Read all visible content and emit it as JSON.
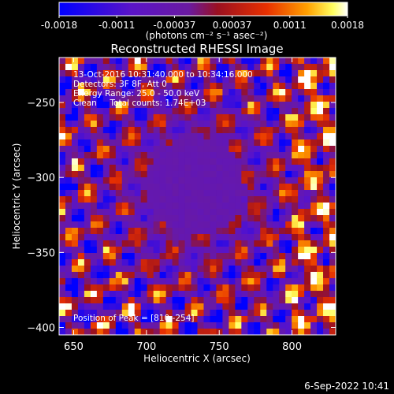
{
  "chart_data": {
    "type": "heatmap",
    "title": "Reconstructed RHESSI Image",
    "xlabel": "Heliocentric X (arcsec)",
    "ylabel": "Heliocentric Y (arcsec)",
    "xlim": [
      640,
      830
    ],
    "ylim": [
      -405,
      -220
    ],
    "xticks": [
      650,
      700,
      750,
      800
    ],
    "yticks": [
      -250,
      -300,
      -350,
      -400
    ],
    "colorbar": {
      "range": [
        -0.0018,
        0.0018
      ],
      "tick_labels": [
        "-0.0018",
        "-0.0011",
        "-0.00037",
        "0.00037",
        "0.0011",
        "0.0018"
      ],
      "unit_label": "(photons cm⁻² s⁻¹ asec⁻²)",
      "colormap": "blue-purple-red-yellow-white"
    },
    "annotations": {
      "time_range": "13-Oct-2016 10:31:40.000 to 10:34:16.000",
      "detectors": "Detectors: 3F 8F, Att 0",
      "energy_range": "Energy Range: 25.0 - 50.0 keV",
      "method_counts": "Clean     Total counts: 1.74E+03",
      "peak": "Position of Peak = [810,-254]"
    },
    "peak_position": [
      810,
      -254
    ]
  },
  "footer": {
    "date": "6-Sep-2022 10:41"
  }
}
